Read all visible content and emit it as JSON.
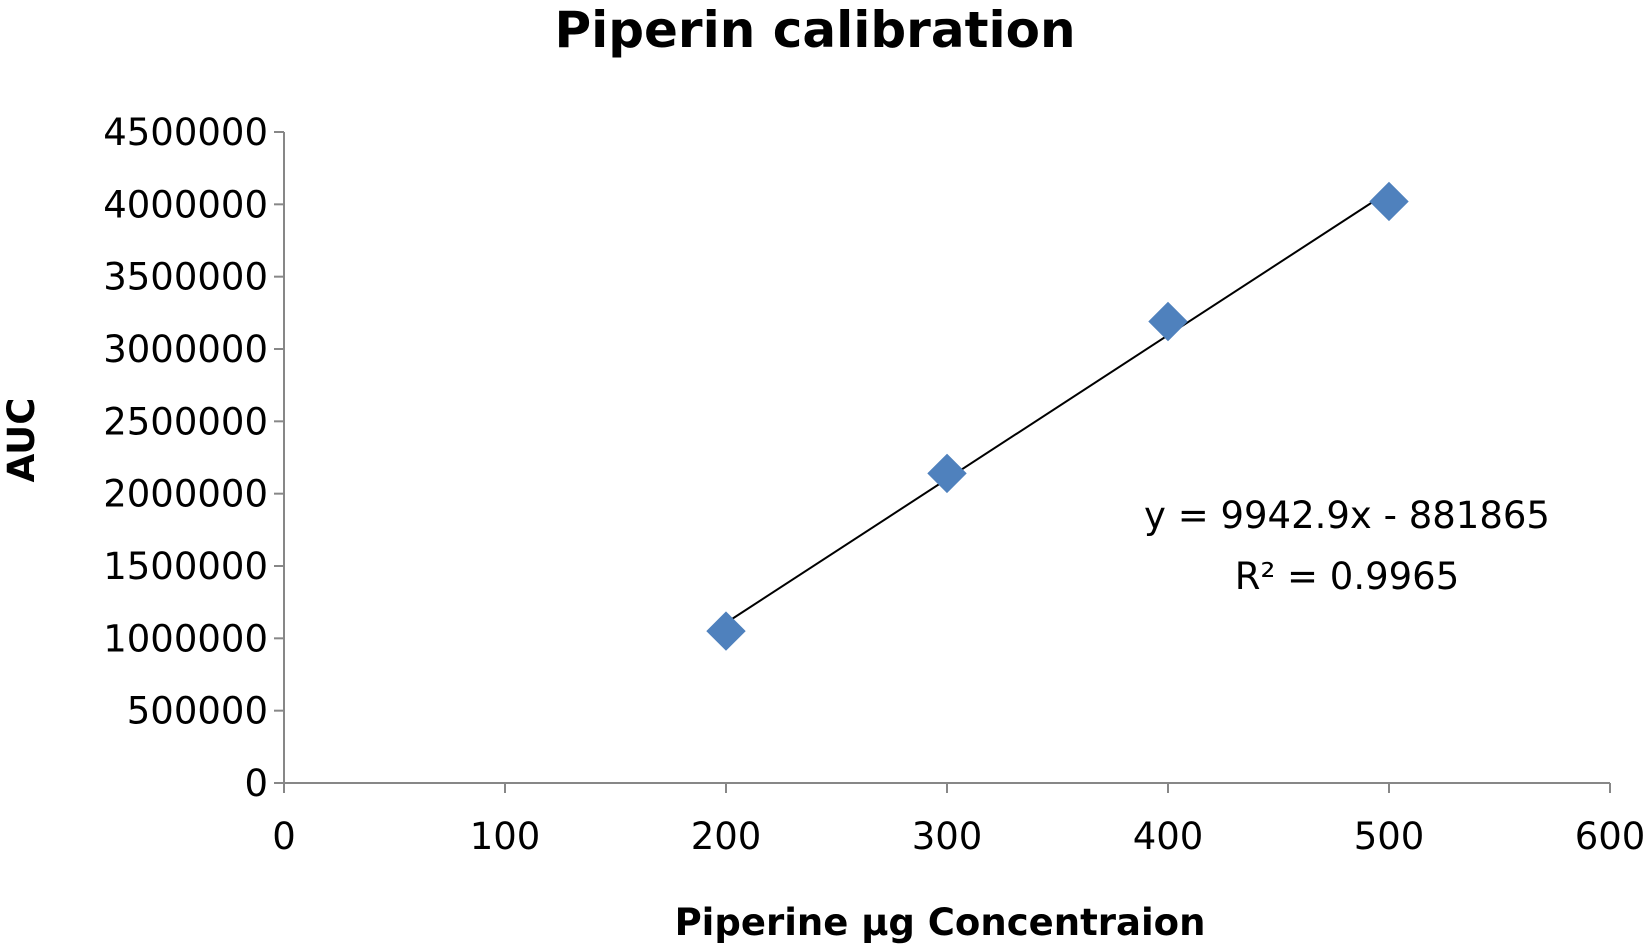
{
  "chart_data": {
    "type": "scatter",
    "title": "Piperin calibration",
    "xlabel": "Piperine µg Concentraion",
    "ylabel": "AUC",
    "xlim": [
      0,
      600
    ],
    "ylim": [
      0,
      4500000
    ],
    "x_ticks": [
      "0",
      "100",
      "200",
      "300",
      "400",
      "500",
      "600"
    ],
    "y_ticks": [
      "0",
      "500000",
      "1000000",
      "1500000",
      "2000000",
      "2500000",
      "3000000",
      "3500000",
      "4000000",
      "4500000"
    ],
    "grid": false,
    "legend": "none",
    "series": [
      {
        "x": [
          200,
          300,
          400,
          500
        ],
        "y": [
          1050000,
          2140000,
          3190000,
          4020000
        ],
        "marker": "diamond",
        "color": "#4F81BD"
      }
    ],
    "trendline": {
      "type": "linear",
      "slope": 9942.9,
      "intercept": -881865,
      "x_range": [
        200,
        500
      ],
      "color": "#000000"
    },
    "annotations": [
      "y = 9942.9x - 881865",
      "R² = 0.9965"
    ]
  }
}
